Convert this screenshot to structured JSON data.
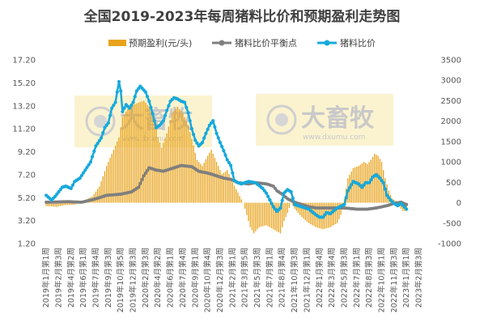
{
  "chart_data": {
    "type": "bar+line",
    "title": "全国2019-2023年每周猪料比价和预期盈利走势图",
    "legend": {
      "placement": "top-center",
      "items": [
        {
          "key": "profit",
          "label": "预期盈利(元/头)",
          "kind": "bar"
        },
        {
          "key": "breakeven",
          "label": "猪料比价平衡点",
          "kind": "line-marker"
        },
        {
          "key": "ratio",
          "label": "猪料比价",
          "kind": "line-marker"
        }
      ]
    },
    "colors": {
      "profit": "#e8a31c",
      "breakeven": "#7f7f7f",
      "ratio": "#16a9dc",
      "title": "#404040",
      "watermark_bg": "#fbf3cf"
    },
    "left_axis": {
      "ylim": [
        1.2,
        17.2
      ],
      "ticks": [
        "17.20",
        "15.20",
        "13.20",
        "11.20",
        "9.20",
        "7.20",
        "5.20",
        "3.20",
        "1.20"
      ]
    },
    "right_axis": {
      "ylim": [
        -1000,
        3500
      ],
      "ticks": [
        "3500",
        "3000",
        "2500",
        "2000",
        "1500",
        "1000",
        "500",
        "0",
        "-500",
        "-1000"
      ]
    },
    "x_tick_labels": [
      "2019年1月第1周",
      "2019年2月第3周",
      "2019年4月第2周",
      "2019年6月第1周",
      "2019年7月第4周",
      "2019年9月第3周",
      "2019年10月第5周",
      "2019年12月第3周",
      "2020年2月第3周",
      "2020年4月第2周",
      "2020年6月第1周",
      "2020年7月第4周",
      "2020年9月第1周",
      "2020年10月第4周",
      "2020年12月第3周",
      "2021年2月第1周",
      "2021年3月第5周",
      "2021年5月第3周",
      "2021年7月第1周",
      "2021年8月第4周",
      "2021年10月第3周",
      "2021年12月第1周",
      "2022年1月第4周",
      "2022年3月第4周",
      "2022年5月第3周",
      "2022年7月第1周",
      "2022年8月第3周",
      "2022年10月第1周",
      "2022年11月第3周",
      "2023年1月第1周",
      "2023年2月第3周"
    ],
    "x_tick_weeks": [
      0,
      7,
      14,
      21,
      28,
      35,
      42,
      49,
      56,
      63,
      70,
      77,
      84,
      91,
      98,
      105,
      112,
      119,
      126,
      133,
      140,
      147,
      154,
      161,
      168,
      175,
      182,
      189,
      196,
      203,
      210
    ],
    "weeks": 218,
    "series_profit": {
      "name": "预期盈利(元/头)",
      "axis": "right",
      "anchors": [
        [
          0,
          -80
        ],
        [
          6,
          -100
        ],
        [
          10,
          -60
        ],
        [
          16,
          -50
        ],
        [
          20,
          30
        ],
        [
          26,
          150
        ],
        [
          30,
          400
        ],
        [
          34,
          900
        ],
        [
          38,
          1300
        ],
        [
          41,
          1600
        ],
        [
          43,
          2100
        ],
        [
          46,
          2300
        ],
        [
          49,
          2400
        ],
        [
          52,
          2450
        ],
        [
          55,
          2500
        ],
        [
          58,
          2350
        ],
        [
          61,
          2000
        ],
        [
          63,
          1600
        ],
        [
          65,
          1350
        ],
        [
          68,
          1700
        ],
        [
          71,
          2200
        ],
        [
          74,
          2350
        ],
        [
          77,
          2200
        ],
        [
          80,
          1900
        ],
        [
          83,
          1400
        ],
        [
          85,
          1050
        ],
        [
          88,
          900
        ],
        [
          91,
          1150
        ],
        [
          93,
          1300
        ],
        [
          96,
          1000
        ],
        [
          99,
          700
        ],
        [
          102,
          800
        ],
        [
          105,
          500
        ],
        [
          108,
          250
        ],
        [
          111,
          0
        ],
        [
          113,
          -300
        ],
        [
          115,
          -600
        ],
        [
          117,
          -750
        ],
        [
          120,
          -600
        ],
        [
          124,
          -550
        ],
        [
          128,
          -650
        ],
        [
          132,
          -750
        ],
        [
          134,
          -450
        ],
        [
          136,
          -250
        ],
        [
          138,
          0
        ],
        [
          140,
          -150
        ],
        [
          144,
          -350
        ],
        [
          148,
          -500
        ],
        [
          152,
          -600
        ],
        [
          156,
          -650
        ],
        [
          160,
          -600
        ],
        [
          164,
          -500
        ],
        [
          166,
          -300
        ],
        [
          168,
          100
        ],
        [
          170,
          600
        ],
        [
          173,
          850
        ],
        [
          176,
          900
        ],
        [
          179,
          1000
        ],
        [
          181,
          950
        ],
        [
          183,
          1050
        ],
        [
          185,
          1200
        ],
        [
          187,
          1150
        ],
        [
          189,
          1000
        ],
        [
          191,
          600
        ],
        [
          193,
          300
        ],
        [
          195,
          100
        ],
        [
          197,
          50
        ],
        [
          199,
          -100
        ],
        [
          201,
          -200
        ],
        [
          203,
          -200
        ]
      ]
    },
    "series_breakeven": {
      "name": "猪料比价平衡点",
      "axis": "left",
      "anchors": [
        [
          0,
          4.8
        ],
        [
          12,
          4.85
        ],
        [
          20,
          4.8
        ],
        [
          28,
          5.1
        ],
        [
          34,
          5.4
        ],
        [
          42,
          5.5
        ],
        [
          48,
          5.7
        ],
        [
          52,
          6.1
        ],
        [
          55,
          7.1
        ],
        [
          58,
          7.8
        ],
        [
          62,
          7.6
        ],
        [
          66,
          7.5
        ],
        [
          72,
          7.8
        ],
        [
          76,
          8.0
        ],
        [
          82,
          7.9
        ],
        [
          86,
          7.5
        ],
        [
          92,
          7.3
        ],
        [
          96,
          7.1
        ],
        [
          100,
          6.9
        ],
        [
          104,
          6.8
        ],
        [
          108,
          6.5
        ],
        [
          114,
          6.4
        ],
        [
          118,
          6.5
        ],
        [
          124,
          6.4
        ],
        [
          128,
          6.2
        ],
        [
          130,
          5.8
        ],
        [
          133,
          5.5
        ],
        [
          136,
          5.1
        ],
        [
          140,
          4.8
        ],
        [
          144,
          4.6
        ],
        [
          148,
          4.4
        ],
        [
          152,
          4.3
        ],
        [
          160,
          4.3
        ],
        [
          168,
          4.3
        ],
        [
          175,
          4.2
        ],
        [
          181,
          4.2
        ],
        [
          186,
          4.3
        ],
        [
          192,
          4.5
        ],
        [
          196,
          4.7
        ],
        [
          200,
          4.8
        ],
        [
          203,
          4.6
        ]
      ]
    },
    "series_ratio": {
      "name": "猪料比价",
      "axis": "left",
      "anchors": [
        [
          0,
          5.4
        ],
        [
          3,
          5.0
        ],
        [
          5,
          5.3
        ],
        [
          9,
          6.1
        ],
        [
          11,
          6.2
        ],
        [
          14,
          6.0
        ],
        [
          16,
          6.6
        ],
        [
          19,
          6.9
        ],
        [
          22,
          7.6
        ],
        [
          25,
          8.3
        ],
        [
          28,
          9.7
        ],
        [
          31,
          10.4
        ],
        [
          33,
          11.3
        ],
        [
          35,
          11.7
        ],
        [
          37,
          13.0
        ],
        [
          39,
          13.5
        ],
        [
          41,
          15.3
        ],
        [
          42,
          14.5
        ],
        [
          43,
          12.7
        ],
        [
          45,
          13.3
        ],
        [
          47,
          13.0
        ],
        [
          49,
          13.5
        ],
        [
          51,
          14.5
        ],
        [
          53,
          14.9
        ],
        [
          56,
          14.4
        ],
        [
          58,
          13.6
        ],
        [
          60,
          12.5
        ],
        [
          62,
          11.3
        ],
        [
          64,
          11.5
        ],
        [
          66,
          11.9
        ],
        [
          68,
          12.8
        ],
        [
          70,
          13.6
        ],
        [
          72,
          13.9
        ],
        [
          74,
          13.8
        ],
        [
          76,
          13.6
        ],
        [
          78,
          13.5
        ],
        [
          80,
          12.6
        ],
        [
          82,
          11.2
        ],
        [
          84,
          10.2
        ],
        [
          86,
          9.7
        ],
        [
          88,
          10.0
        ],
        [
          90,
          10.8
        ],
        [
          92,
          11.5
        ],
        [
          94,
          11.9
        ],
        [
          96,
          10.8
        ],
        [
          98,
          10.0
        ],
        [
          100,
          9.3
        ],
        [
          102,
          8.5
        ],
        [
          104,
          8.0
        ],
        [
          106,
          6.7
        ],
        [
          108,
          6.5
        ],
        [
          110,
          6.4
        ],
        [
          112,
          6.5
        ],
        [
          114,
          6.6
        ],
        [
          118,
          6.5
        ],
        [
          122,
          6.0
        ],
        [
          124,
          5.6
        ],
        [
          126,
          5.0
        ],
        [
          128,
          4.4
        ],
        [
          130,
          4.0
        ],
        [
          132,
          4.3
        ],
        [
          134,
          5.6
        ],
        [
          136,
          5.9
        ],
        [
          138,
          5.7
        ],
        [
          140,
          4.6
        ],
        [
          144,
          4.4
        ],
        [
          148,
          4.2
        ],
        [
          152,
          3.7
        ],
        [
          154,
          3.5
        ],
        [
          156,
          3.5
        ],
        [
          158,
          3.9
        ],
        [
          160,
          3.8
        ],
        [
          164,
          4.3
        ],
        [
          168,
          4.6
        ],
        [
          170,
          5.8
        ],
        [
          173,
          6.6
        ],
        [
          176,
          6.4
        ],
        [
          178,
          6.1
        ],
        [
          180,
          6.5
        ],
        [
          182,
          6.5
        ],
        [
          184,
          7.0
        ],
        [
          186,
          7.2
        ],
        [
          188,
          6.9
        ],
        [
          190,
          6.5
        ],
        [
          192,
          5.4
        ],
        [
          194,
          5.0
        ],
        [
          196,
          4.7
        ],
        [
          198,
          4.5
        ],
        [
          200,
          4.7
        ],
        [
          203,
          4.2
        ]
      ]
    }
  },
  "watermark": {
    "brand": "大畜牧",
    "url": "www.dxumu.com"
  }
}
